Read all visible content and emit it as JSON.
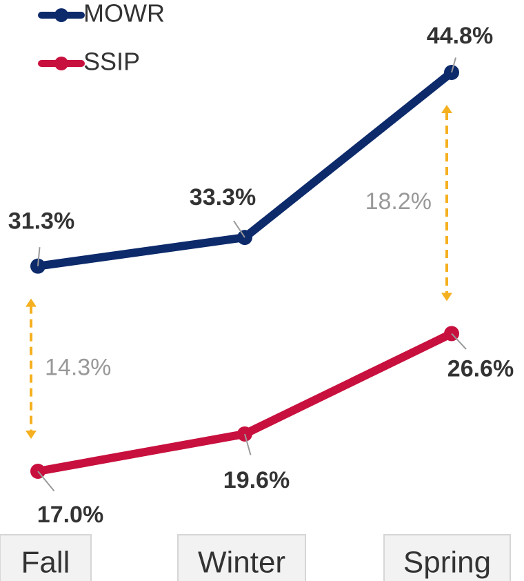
{
  "chart_data": {
    "type": "line",
    "categories": [
      "Fall",
      "Winter",
      "Spring"
    ],
    "series": [
      {
        "name": "MOWR",
        "color": "#0d2a6b",
        "values": [
          31.3,
          33.3,
          44.8
        ],
        "value_labels": [
          "31.3%",
          "33.3%",
          "44.8%"
        ]
      },
      {
        "name": "SSIP",
        "color": "#c8103e",
        "values": [
          17.0,
          19.6,
          26.6
        ],
        "value_labels": [
          "17.0%",
          "19.6%",
          "26.6%"
        ]
      }
    ],
    "annotations": [
      {
        "value": 14.3,
        "label": "14.3%"
      },
      {
        "value": 18.2,
        "label": "18.2%"
      }
    ],
    "annotation_color": "#f5b020"
  }
}
